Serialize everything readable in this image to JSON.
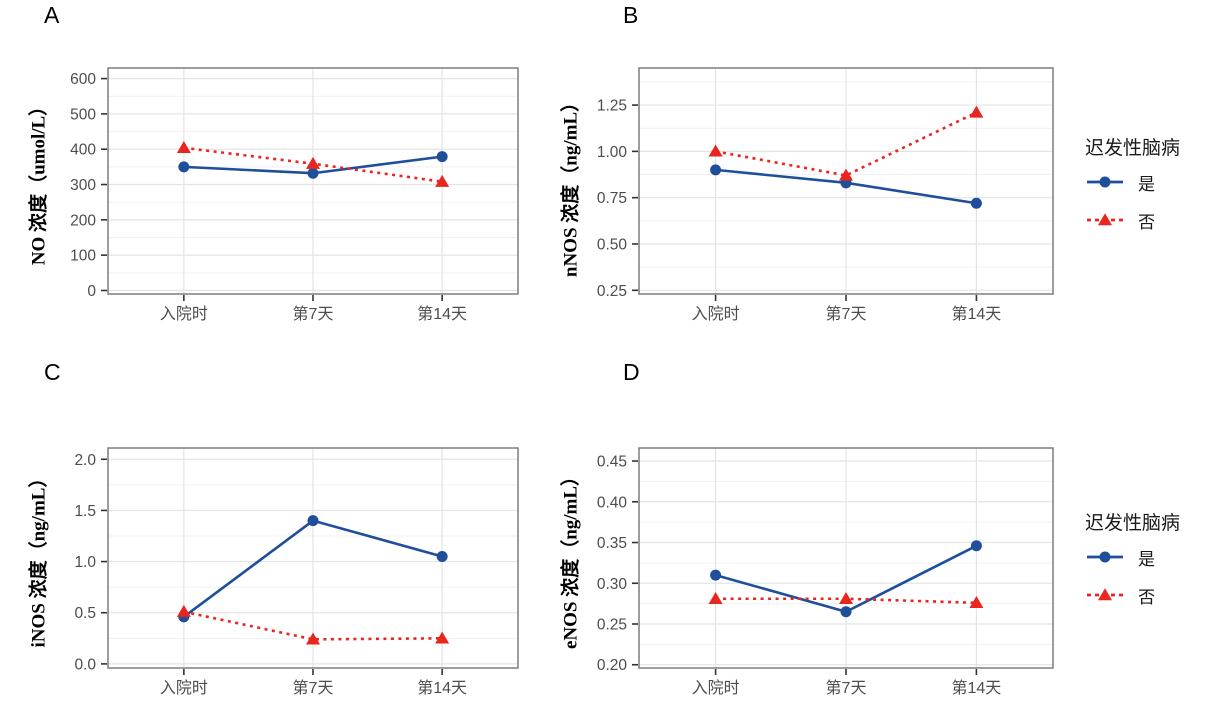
{
  "legend": {
    "title": "迟发性脑病",
    "items": [
      {
        "label": "是",
        "color": "#1f4e9b",
        "marker": "circle",
        "line": "solid"
      },
      {
        "label": "否",
        "color": "#e8251f",
        "marker": "triangle",
        "line": "dashed"
      }
    ]
  },
  "chart_data": [
    {
      "id": "A",
      "type": "line",
      "title": "A",
      "ylabel": "NO 浓度（umol/L）",
      "xlabel": "",
      "categories": [
        "入院时",
        "第7天",
        "第14天"
      ],
      "series": [
        {
          "name": "是",
          "values": [
            350,
            332,
            379
          ]
        },
        {
          "name": "否",
          "values": [
            404,
            359,
            308
          ]
        }
      ],
      "ytick_values": [
        0,
        100,
        200,
        300,
        400,
        500,
        600
      ],
      "ytick_labels": [
        "0",
        "100",
        "200",
        "300",
        "400",
        "500",
        "600"
      ],
      "ylim": [
        -10,
        630
      ],
      "grid": "on",
      "legend_position": "right"
    },
    {
      "id": "B",
      "type": "line",
      "title": "B",
      "ylabel": "nNOS 浓度（ng/mL）",
      "xlabel": "",
      "categories": [
        "入院时",
        "第7天",
        "第14天"
      ],
      "series": [
        {
          "name": "是",
          "values": [
            0.9,
            0.83,
            0.72
          ]
        },
        {
          "name": "否",
          "values": [
            1.0,
            0.87,
            1.21
          ]
        }
      ],
      "ytick_values": [
        0.25,
        0.5,
        0.75,
        1.0,
        1.25
      ],
      "ytick_labels": [
        "0.25",
        "0.50",
        "0.75",
        "1.00",
        "1.25"
      ],
      "ylim": [
        0.23,
        1.45
      ],
      "grid": "on",
      "legend_position": "right"
    },
    {
      "id": "C",
      "type": "line",
      "title": "C",
      "ylabel": "iNOS 浓度（ng/mL）",
      "xlabel": "",
      "categories": [
        "入院时",
        "第7天",
        "第14天"
      ],
      "series": [
        {
          "name": "是",
          "values": [
            0.46,
            1.4,
            1.05
          ]
        },
        {
          "name": "否",
          "values": [
            0.51,
            0.24,
            0.25
          ]
        }
      ],
      "ytick_values": [
        0.0,
        0.5,
        1.0,
        1.5,
        2.0
      ],
      "ytick_labels": [
        "0.0",
        "0.5",
        "1.0",
        "1.5",
        "2.0"
      ],
      "ylim": [
        -0.04,
        2.11
      ],
      "grid": "on",
      "legend_position": "right"
    },
    {
      "id": "D",
      "type": "line",
      "title": "D",
      "ylabel": "eNOS 浓度（ng/mL）",
      "xlabel": "",
      "categories": [
        "入院时",
        "第7天",
        "第14天"
      ],
      "series": [
        {
          "name": "是",
          "values": [
            0.31,
            0.265,
            0.346
          ]
        },
        {
          "name": "否",
          "values": [
            0.281,
            0.281,
            0.276
          ]
        }
      ],
      "ytick_values": [
        0.2,
        0.25,
        0.3,
        0.35,
        0.4,
        0.45
      ],
      "ytick_labels": [
        "0.20",
        "0.25",
        "0.30",
        "0.35",
        "0.40",
        "0.45"
      ],
      "ylim": [
        0.196,
        0.466
      ],
      "grid": "on",
      "legend_position": "right"
    }
  ]
}
